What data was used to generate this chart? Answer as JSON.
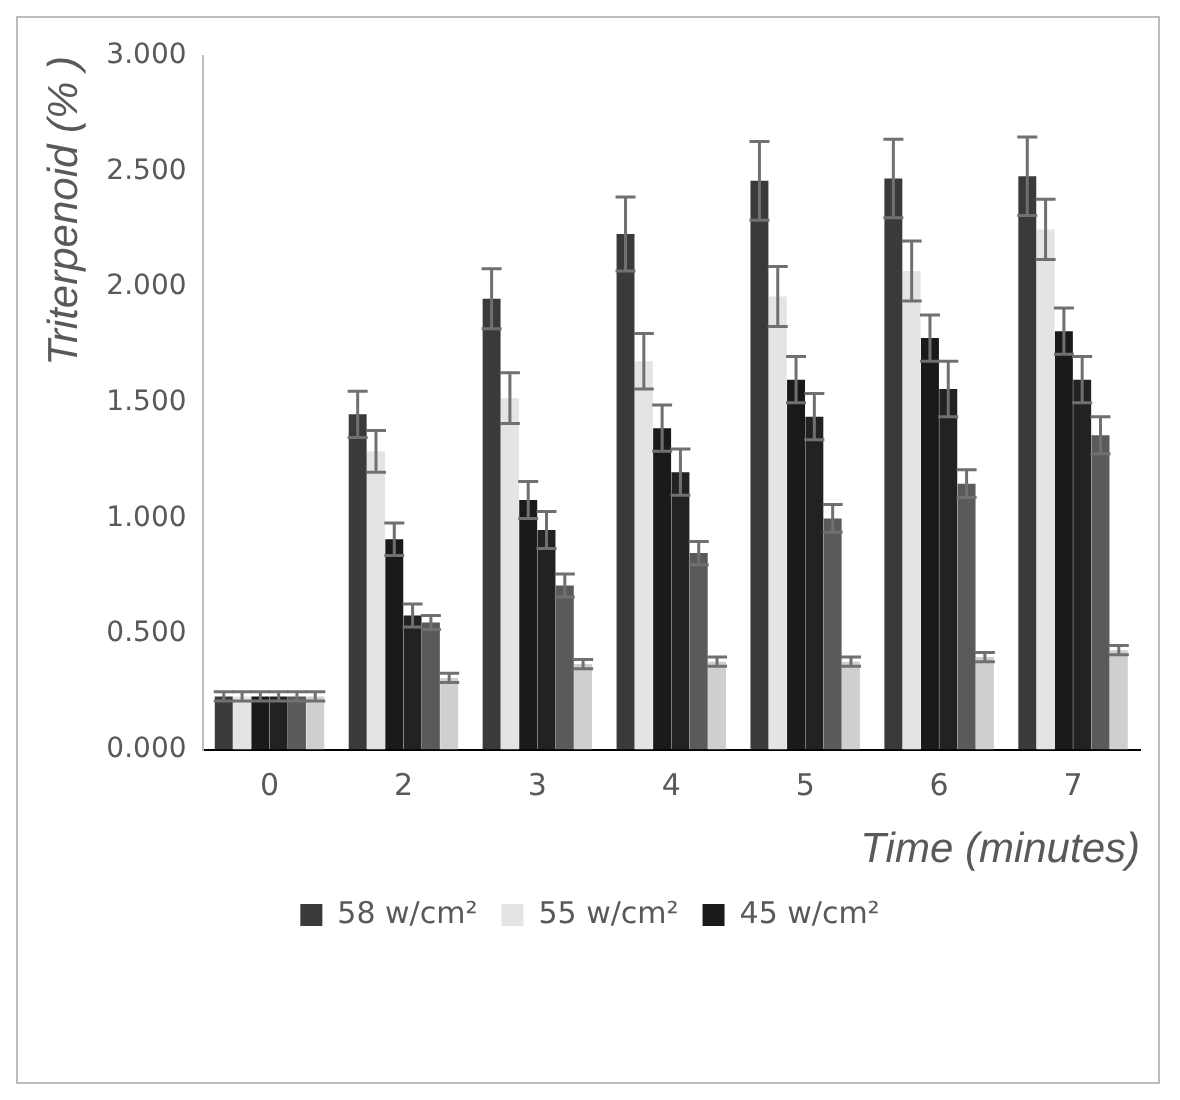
{
  "chart_data": {
    "type": "bar",
    "ylabel": "Triterpenoid (% )",
    "xlabel": "Time (minutes)",
    "categories": [
      "0",
      "2",
      "3",
      "4",
      "5",
      "6",
      "7"
    ],
    "ylim": [
      0,
      3
    ],
    "yticks": [
      {
        "value": 0,
        "label": "0.000"
      },
      {
        "value": 0.5,
        "label": "0.500"
      },
      {
        "value": 1,
        "label": "1.000"
      },
      {
        "value": 1.5,
        "label": "1.500"
      },
      {
        "value": 2,
        "label": "2.000"
      },
      {
        "value": 2.5,
        "label": "2.500"
      },
      {
        "value": 3,
        "label": "3.000"
      }
    ],
    "grid": false,
    "legend": "bottom",
    "series": [
      {
        "name": "58 w/cm²",
        "color": "#3a3a3a",
        "values": [
          0.23,
          1.45,
          1.95,
          2.23,
          2.46,
          2.47,
          2.48
        ],
        "errors": [
          0.02,
          0.1,
          0.13,
          0.16,
          0.17,
          0.17,
          0.17
        ]
      },
      {
        "name": "55 w/cm²",
        "color": "#e4e4e4",
        "values": [
          0.23,
          1.29,
          1.52,
          1.68,
          1.96,
          2.07,
          2.25
        ],
        "errors": [
          0.02,
          0.09,
          0.11,
          0.12,
          0.13,
          0.13,
          0.13
        ]
      },
      {
        "name": "45 w/cm²",
        "color": "#1a1a1a",
        "values": [
          0.23,
          0.91,
          1.08,
          1.39,
          1.6,
          1.78,
          1.81
        ],
        "errors": [
          0.02,
          0.07,
          0.08,
          0.1,
          0.1,
          0.1,
          0.1
        ]
      },
      {
        "color": "#222222",
        "values": [
          0.23,
          0.58,
          0.95,
          1.2,
          1.44,
          1.56,
          1.6
        ],
        "errors": [
          0.02,
          0.05,
          0.08,
          0.1,
          0.1,
          0.12,
          0.1
        ]
      },
      {
        "color": "#5a5a5a",
        "values": [
          0.23,
          0.55,
          0.71,
          0.85,
          1.0,
          1.15,
          1.36
        ],
        "errors": [
          0.02,
          0.03,
          0.05,
          0.05,
          0.06,
          0.06,
          0.08
        ]
      },
      {
        "color": "#cfcfcf",
        "values": [
          0.23,
          0.31,
          0.37,
          0.38,
          0.38,
          0.4,
          0.43
        ],
        "errors": [
          0.02,
          0.02,
          0.02,
          0.02,
          0.02,
          0.02,
          0.02
        ]
      }
    ]
  }
}
